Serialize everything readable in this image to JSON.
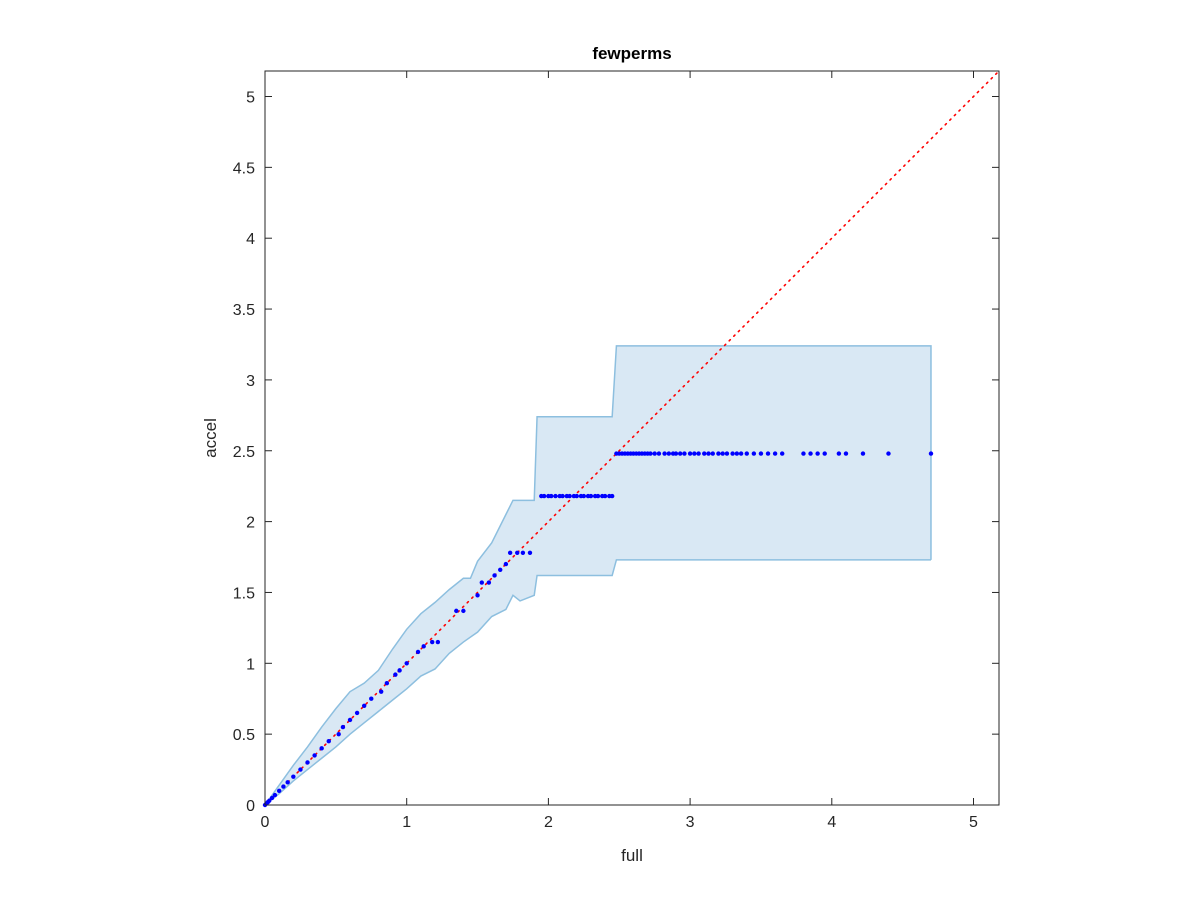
{
  "chart_data": {
    "type": "scatter",
    "title": "fewperms",
    "xlabel": "full",
    "ylabel": "accel",
    "xlim": [
      0,
      5.18
    ],
    "ylim": [
      0,
      5.18
    ],
    "xticks": [
      0,
      1,
      2,
      3,
      4,
      5
    ],
    "xtick_labels": [
      "0",
      "1",
      "2",
      "3",
      "4",
      "5"
    ],
    "yticks": [
      0,
      0.5,
      1,
      1.5,
      2,
      2.5,
      3,
      3.5,
      4,
      4.5,
      5
    ],
    "ytick_labels": [
      "0",
      "0.5",
      "1",
      "1.5",
      "2",
      "2.5",
      "3",
      "3.5",
      "4",
      "4.5",
      "5"
    ],
    "grid": false,
    "legend": "none",
    "colors": {
      "points": "#0000ff",
      "reference_line": "#ff0000",
      "band_fill": "#d9e8f4",
      "band_edge": "#8dbfdf",
      "axes": "#262626"
    },
    "reference_line": {
      "style": "dotted",
      "x": [
        0,
        5.18
      ],
      "y": [
        0,
        5.18
      ]
    },
    "band_upper": {
      "x": [
        0,
        0.1,
        0.2,
        0.3,
        0.4,
        0.5,
        0.6,
        0.7,
        0.8,
        0.9,
        1.0,
        1.1,
        1.2,
        1.3,
        1.4,
        1.45,
        1.5,
        1.6,
        1.7,
        1.75,
        1.8,
        1.9,
        1.92,
        2.0,
        2.2,
        2.45,
        2.48,
        2.5,
        3.0,
        3.5,
        4.0,
        4.5,
        4.7
      ],
      "y": [
        0,
        0.14,
        0.28,
        0.41,
        0.55,
        0.68,
        0.8,
        0.86,
        0.95,
        1.1,
        1.24,
        1.35,
        1.43,
        1.52,
        1.6,
        1.6,
        1.72,
        1.85,
        2.05,
        2.15,
        2.15,
        2.15,
        2.74,
        2.74,
        2.74,
        2.74,
        3.24,
        3.24,
        3.24,
        3.24,
        3.24,
        3.24,
        3.24
      ]
    },
    "band_lower": {
      "x": [
        0,
        0.1,
        0.2,
        0.3,
        0.4,
        0.5,
        0.6,
        0.7,
        0.8,
        0.9,
        1.0,
        1.1,
        1.2,
        1.3,
        1.4,
        1.5,
        1.6,
        1.7,
        1.75,
        1.8,
        1.9,
        1.92,
        2.0,
        2.2,
        2.45,
        2.48,
        2.5,
        3.0,
        3.5,
        4.0,
        4.5,
        4.7
      ],
      "y": [
        0,
        0.08,
        0.17,
        0.25,
        0.33,
        0.41,
        0.5,
        0.58,
        0.66,
        0.74,
        0.82,
        0.91,
        0.96,
        1.07,
        1.15,
        1.22,
        1.33,
        1.38,
        1.48,
        1.44,
        1.48,
        1.62,
        1.62,
        1.62,
        1.62,
        1.73,
        1.73,
        1.73,
        1.73,
        1.73,
        1.73,
        1.73
      ]
    },
    "series": [
      {
        "x": [
          0.0,
          0.01,
          0.02,
          0.03,
          0.05,
          0.07,
          0.1,
          0.13,
          0.16,
          0.2,
          0.25,
          0.3,
          0.35,
          0.4,
          0.45,
          0.52,
          0.55,
          0.6,
          0.65,
          0.7,
          0.75,
          0.82,
          0.86,
          0.92,
          0.95,
          1.0,
          1.08,
          1.12,
          1.18,
          1.22,
          1.35,
          1.4,
          1.5,
          1.53,
          1.58,
          1.62,
          1.66,
          1.7,
          1.73,
          1.78,
          1.82,
          1.87,
          1.95,
          1.97,
          2.0,
          2.02,
          2.05,
          2.08,
          2.1,
          2.13,
          2.15,
          2.18,
          2.2,
          2.23,
          2.25,
          2.28,
          2.3,
          2.33,
          2.35,
          2.38,
          2.4,
          2.43,
          2.45,
          2.48,
          2.5,
          2.52,
          2.54,
          2.56,
          2.58,
          2.6,
          2.62,
          2.64,
          2.66,
          2.68,
          2.7,
          2.72,
          2.75,
          2.78,
          2.82,
          2.85,
          2.88,
          2.9,
          2.93,
          2.96,
          3.0,
          3.03,
          3.06,
          3.1,
          3.13,
          3.16,
          3.2,
          3.23,
          3.26,
          3.3,
          3.33,
          3.36,
          3.4,
          3.45,
          3.5,
          3.55,
          3.6,
          3.65,
          3.8,
          3.85,
          3.9,
          3.95,
          4.05,
          4.1,
          4.22,
          4.4,
          4.7
        ],
        "y": [
          0.0,
          0.01,
          0.02,
          0.03,
          0.05,
          0.07,
          0.1,
          0.13,
          0.16,
          0.2,
          0.25,
          0.3,
          0.35,
          0.4,
          0.45,
          0.5,
          0.55,
          0.6,
          0.65,
          0.7,
          0.75,
          0.8,
          0.86,
          0.92,
          0.95,
          1.0,
          1.08,
          1.12,
          1.15,
          1.15,
          1.37,
          1.37,
          1.48,
          1.57,
          1.57,
          1.62,
          1.66,
          1.7,
          1.78,
          1.78,
          1.78,
          1.78,
          2.18,
          2.18,
          2.18,
          2.18,
          2.18,
          2.18,
          2.18,
          2.18,
          2.18,
          2.18,
          2.18,
          2.18,
          2.18,
          2.18,
          2.18,
          2.18,
          2.18,
          2.18,
          2.18,
          2.18,
          2.18,
          2.48,
          2.48,
          2.48,
          2.48,
          2.48,
          2.48,
          2.48,
          2.48,
          2.48,
          2.48,
          2.48,
          2.48,
          2.48,
          2.48,
          2.48,
          2.48,
          2.48,
          2.48,
          2.48,
          2.48,
          2.48,
          2.48,
          2.48,
          2.48,
          2.48,
          2.48,
          2.48,
          2.48,
          2.48,
          2.48,
          2.48,
          2.48,
          2.48,
          2.48,
          2.48,
          2.48,
          2.48,
          2.48,
          2.48,
          2.48,
          2.48,
          2.48,
          2.48,
          2.48,
          2.48,
          2.48,
          2.48,
          2.48
        ]
      }
    ]
  }
}
